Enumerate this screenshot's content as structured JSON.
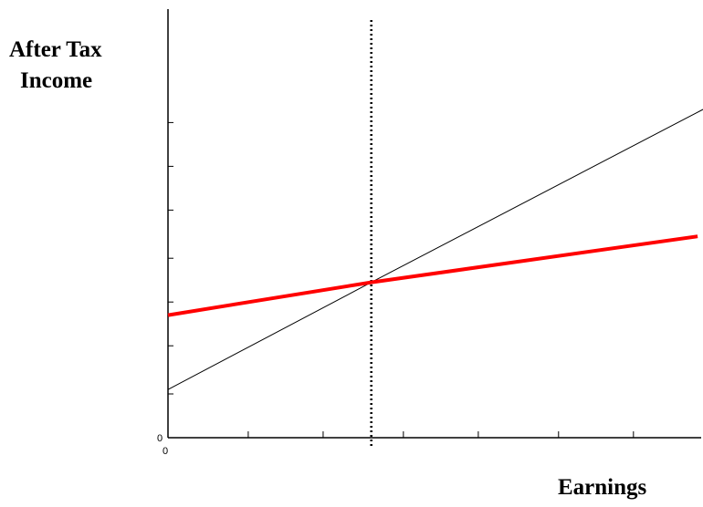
{
  "chart_data": {
    "type": "line",
    "title": "",
    "ylabel_lines": [
      "After Tax",
      "Income"
    ],
    "xlabel": "Earnings",
    "x_origin_label": "0",
    "y_origin_label": "0",
    "xlim": [
      0,
      10
    ],
    "ylim": [
      0,
      10
    ],
    "x_ticks": [
      0,
      1.5,
      2.9,
      4.4,
      5.8,
      7.3,
      8.7
    ],
    "y_ticks": [
      1,
      2.1,
      3.1,
      4.1,
      5.2,
      6.2,
      7.2
    ],
    "grid": false,
    "legend": "none",
    "vertical_line": {
      "x": 3.8,
      "style": "dotted",
      "color": "#000000"
    },
    "series": [
      {
        "color": "#000000",
        "style": "thin",
        "points": [
          [
            0,
            1.1
          ],
          [
            3.8,
            3.55
          ],
          [
            10,
            7.5
          ]
        ]
      },
      {
        "color": "#ff0000",
        "style": "thick",
        "points": [
          [
            0,
            2.8
          ],
          [
            3.8,
            3.55
          ],
          [
            9.9,
            4.6
          ]
        ]
      }
    ]
  }
}
